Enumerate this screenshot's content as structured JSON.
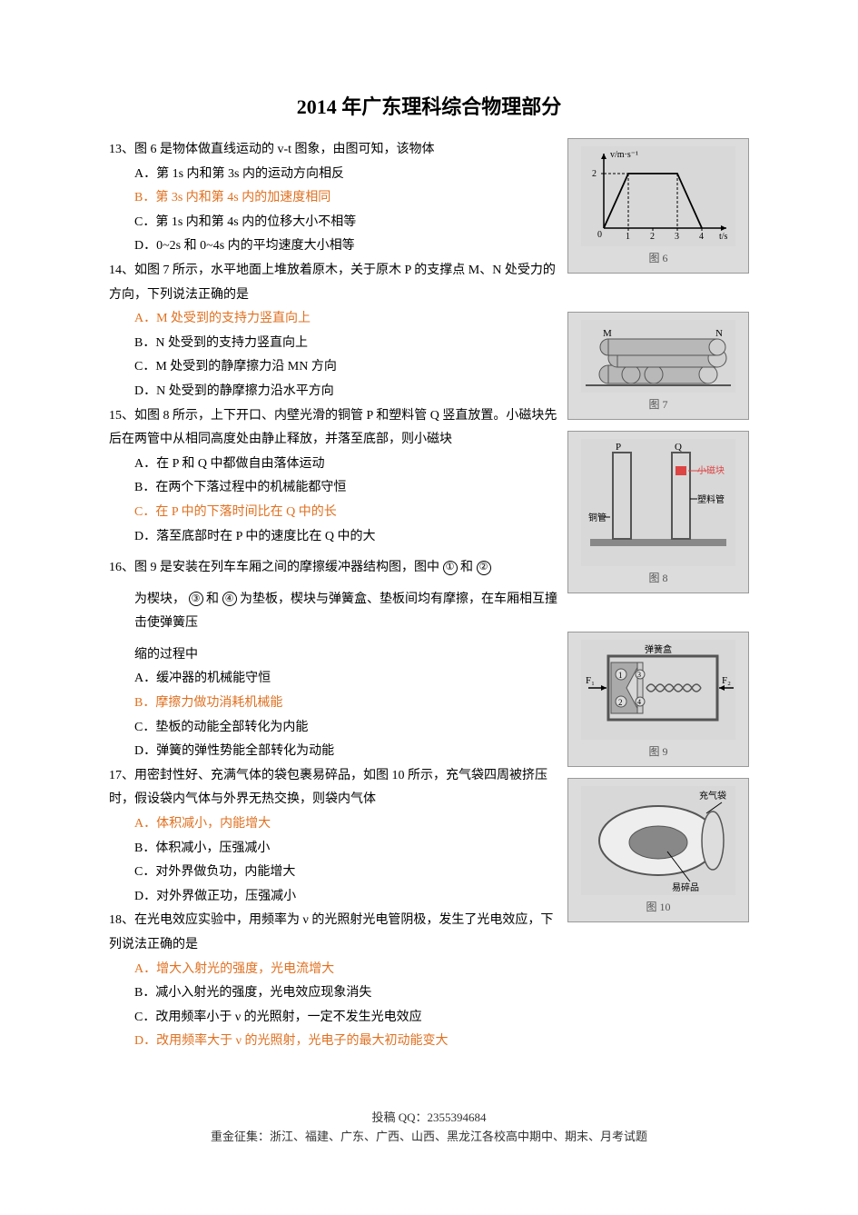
{
  "title": "2014 年广东理科综合物理部分",
  "q13": {
    "stem": "13、图 6 是物体做直线运动的 v-t 图象，由图可知，该物体",
    "A": "A．第 1s 内和第 3s 内的运动方向相反",
    "B": "B．第 3s 内和第 4s 内的加速度相同",
    "C": "C．第 1s 内和第 4s 内的位移大小不相等",
    "D": "D．0~2s 和 0~4s 内的平均速度大小相等"
  },
  "q14": {
    "stem": "14、如图 7 所示，水平地面上堆放着原木，关于原木 P 的支撑点 M、N 处受力的方向，下列说法正确的是",
    "A": "A．M 处受到的支持力竖直向上",
    "B": "B．N 处受到的支持力竖直向上",
    "C": "C．M 处受到的静摩擦力沿 MN 方向",
    "D": "D．N 处受到的静摩擦力沿水平方向"
  },
  "q15": {
    "stem": "15、如图 8 所示，上下开口、内壁光滑的铜管 P 和塑料管 Q 竖直放置。小磁块先后在两管中从相同高度处由静止释放，并落至底部，则小磁块",
    "A": "A．在 P 和 Q 中都做自由落体运动",
    "B": "B．在两个下落过程中的机械能都守恒",
    "C": "C．在 P 中的下落时间比在 Q 中的长",
    "D": "D．落至底部时在 P 中的速度比在 Q 中的大"
  },
  "q16": {
    "stem1": "16、图 9 是安装在列车车厢之间的摩擦缓冲器结构图，图中 ",
    "stem1_c1": "①",
    "stem1_mid": "和",
    "stem1_c2": "②",
    "stem2a": "为楔块，",
    "stem2_c3": "③",
    "stem2b": " 和",
    "stem2_c4": "④",
    "stem2c": " 为垫板，楔块与弹簧盒、垫板间均有摩擦，在车厢相互撞击使弹簧压",
    "stem3": "缩的过程中",
    "A": "A．缓冲器的机械能守恒",
    "B": "B．摩擦力做功消耗机械能",
    "C": "C．垫板的动能全部转化为内能",
    "D": "D．弹簧的弹性势能全部转化为动能"
  },
  "q17": {
    "stem": "17、用密封性好、充满气体的袋包裹易碎品，如图 10 所示，充气袋四周被挤压时，假设袋内气体与外界无热交换，则袋内气体",
    "A": "A．体积减小，内能增大",
    "B": "B．体积减小，压强减小",
    "C": "C．对外界做负功，内能增大",
    "D": "D．对外界做正功，压强减小"
  },
  "q18": {
    "stem": "18、在光电效应实验中，用频率为 ν 的光照射光电管阴极，发生了光电效应，下列说法正确的是",
    "A": "A．增大入射光的强度，光电流增大",
    "B": "B．减小入射光的强度，光电效应现象消失",
    "C": "C．改用频率小于 ν 的光照射，一定不发生光电效应",
    "D": "D．改用频率大于 ν 的光照射，光电子的最大初动能变大"
  },
  "figures": {
    "f6": {
      "caption": "图 6",
      "bg": "#d8d8d8",
      "ylabel": "v/m·s⁻¹",
      "xlabel": "t/s",
      "points": [
        [
          0,
          0
        ],
        [
          1,
          2
        ],
        [
          3,
          2
        ],
        [
          4,
          0
        ]
      ],
      "xlim": [
        0,
        5
      ],
      "ylim": [
        0,
        2.5
      ],
      "xticks": [
        1,
        2,
        3,
        4
      ],
      "yticks": [
        2
      ],
      "axis_color": "#000",
      "line_color": "#000"
    },
    "f7": {
      "caption": "图 7",
      "bg": "#d8d8d8",
      "log_fill": "#b8b8b8",
      "log_stroke": "#555",
      "labels": [
        "M",
        "N"
      ]
    },
    "f8": {
      "caption": "图 8",
      "bg": "#d8d8d8",
      "labels": {
        "P": "P",
        "Q": "Q",
        "magnet": "小磁块",
        "plastic": "塑料管",
        "copper": "铜管"
      },
      "colors": {
        "tube": "#a0a0a0",
        "magnet": "#d44",
        "table": "#888"
      }
    },
    "f9": {
      "caption": "图 9",
      "bg": "#d8d8d8",
      "label_top": "弹簧盒",
      "label_F1": "F₁",
      "label_F2": "F₂",
      "colors": {
        "box": "#888",
        "spring": "#555",
        "wedge": "#aaa"
      }
    },
    "f10": {
      "caption": "图 10",
      "bg": "#d8d8d8",
      "label_bag": "充气袋",
      "label_item": "易碎品",
      "colors": {
        "bag": "#eee",
        "item": "#888",
        "outline": "#555"
      }
    }
  },
  "footer": {
    "line1": "投稿 QQ：2355394684",
    "line2": "重金征集：浙江、福建、广东、广西、山西、黑龙江各校高中期中、期末、月考试题"
  }
}
